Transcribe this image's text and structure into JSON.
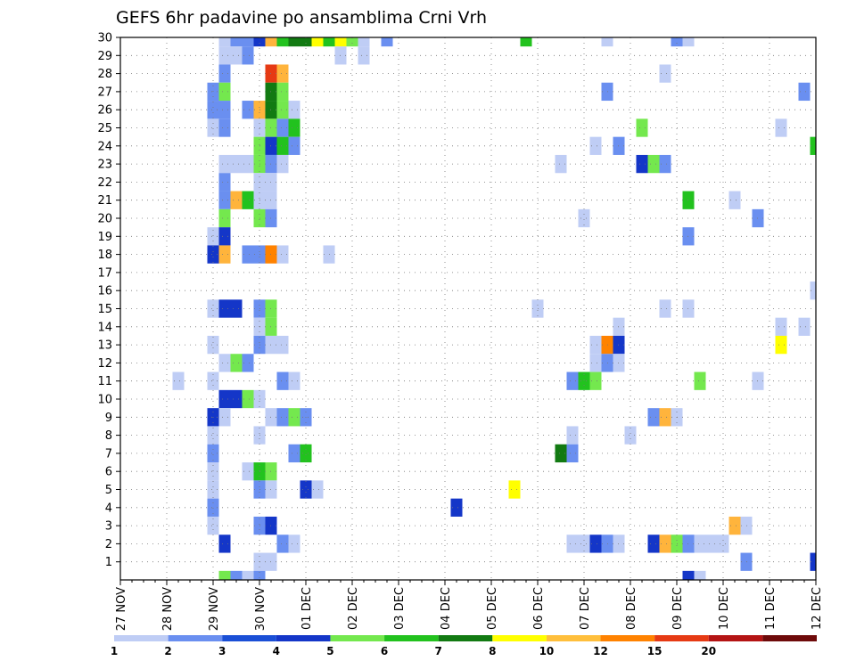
{
  "chart_data": {
    "type": "heatmap",
    "title": "GEFS 6hr padavine po ansamblima Crni Vrh",
    "xlabel": "",
    "ylabel": "",
    "x_start": "27 NOV",
    "steps_per_day": 4,
    "num_steps": 61,
    "x_tick_labels": [
      "27 NOV",
      "28 NOV",
      "29 NOV",
      "30 NOV",
      "01 DEC",
      "02 DEC",
      "03 DEC",
      "04 DEC",
      "05 DEC",
      "06 DEC",
      "07 DEC",
      "08 DEC",
      "09 DEC",
      "10 DEC",
      "11 DEC",
      "12 DEC"
    ],
    "ylim": [
      0,
      30
    ],
    "y_tick_labels": [
      1,
      2,
      3,
      4,
      5,
      6,
      7,
      8,
      9,
      10,
      11,
      12,
      13,
      14,
      15,
      16,
      17,
      18,
      19,
      20,
      21,
      22,
      23,
      24,
      25,
      26,
      27,
      28,
      29,
      30
    ],
    "grid": true,
    "legend": {
      "placement": "bottom",
      "colors": [
        "#bfcdf5",
        "#6a8ff0",
        "#1a4fd6",
        "#1436c8",
        "#74e84e",
        "#22c21e",
        "#127a12",
        "#ffff00",
        "#ffbf3c",
        "#ff8200",
        "#e63a14",
        "#b41414",
        "#6e0a0a"
      ],
      "labels": [
        "1",
        "2",
        "3",
        "4",
        "5",
        "6",
        "7",
        "8",
        "10",
        "12",
        "15",
        "20"
      ]
    },
    "levels": {
      "l": "#bfcdf5",
      "m": "#6a8ff0",
      "b": "#1a4fd6",
      "d": "#1436c8",
      "g": "#74e84e",
      "G": "#22c21e",
      "D": "#127a12",
      "y": "#ffff00",
      "o": "#ffb43c",
      "O": "#ff8200",
      "r": "#e63a14",
      "R": "#b41414"
    },
    "cells": [
      {
        "m": 30,
        "s": 9,
        "c": "l"
      },
      {
        "m": 30,
        "s": 10,
        "c": "m"
      },
      {
        "m": 30,
        "s": 11,
        "c": "m"
      },
      {
        "m": 30,
        "s": 12,
        "c": "d"
      },
      {
        "m": 30,
        "s": 13,
        "c": "o"
      },
      {
        "m": 30,
        "s": 14,
        "c": "G"
      },
      {
        "m": 30,
        "s": 15,
        "c": "D"
      },
      {
        "m": 30,
        "s": 16,
        "c": "D"
      },
      {
        "m": 30,
        "s": 17,
        "c": "y"
      },
      {
        "m": 30,
        "s": 18,
        "c": "G"
      },
      {
        "m": 30,
        "s": 19,
        "c": "y"
      },
      {
        "m": 30,
        "s": 20,
        "c": "g"
      },
      {
        "m": 30,
        "s": 21,
        "c": "l"
      },
      {
        "m": 30,
        "s": 23,
        "c": "m"
      },
      {
        "m": 30,
        "s": 35,
        "c": "G"
      },
      {
        "m": 30,
        "s": 42,
        "c": "l"
      },
      {
        "m": 30,
        "s": 48,
        "c": "m"
      },
      {
        "m": 30,
        "s": 49,
        "c": "l"
      },
      {
        "m": 29,
        "s": 9,
        "c": "l"
      },
      {
        "m": 29,
        "s": 10,
        "c": "l"
      },
      {
        "m": 29,
        "s": 11,
        "c": "m"
      },
      {
        "m": 29,
        "s": 19,
        "c": "l"
      },
      {
        "m": 29,
        "s": 21,
        "c": "l"
      },
      {
        "m": 28,
        "s": 9,
        "c": "m"
      },
      {
        "m": 28,
        "s": 13,
        "c": "r"
      },
      {
        "m": 28,
        "s": 14,
        "c": "o"
      },
      {
        "m": 28,
        "s": 47,
        "c": "l"
      },
      {
        "m": 27,
        "s": 8,
        "c": "m"
      },
      {
        "m": 27,
        "s": 9,
        "c": "g"
      },
      {
        "m": 27,
        "s": 13,
        "c": "D"
      },
      {
        "m": 27,
        "s": 14,
        "c": "g"
      },
      {
        "m": 27,
        "s": 42,
        "c": "m"
      },
      {
        "m": 27,
        "s": 59,
        "c": "m"
      },
      {
        "m": 26,
        "s": 8,
        "c": "m"
      },
      {
        "m": 26,
        "s": 9,
        "c": "m"
      },
      {
        "m": 26,
        "s": 11,
        "c": "m"
      },
      {
        "m": 26,
        "s": 12,
        "c": "o"
      },
      {
        "m": 26,
        "s": 13,
        "c": "D"
      },
      {
        "m": 26,
        "s": 14,
        "c": "g"
      },
      {
        "m": 26,
        "s": 15,
        "c": "l"
      },
      {
        "m": 25,
        "s": 8,
        "c": "l"
      },
      {
        "m": 25,
        "s": 9,
        "c": "m"
      },
      {
        "m": 25,
        "s": 12,
        "c": "l"
      },
      {
        "m": 25,
        "s": 13,
        "c": "g"
      },
      {
        "m": 25,
        "s": 14,
        "c": "m"
      },
      {
        "m": 25,
        "s": 15,
        "c": "G"
      },
      {
        "m": 25,
        "s": 45,
        "c": "g"
      },
      {
        "m": 25,
        "s": 57,
        "c": "l"
      },
      {
        "m": 24,
        "s": 12,
        "c": "g"
      },
      {
        "m": 24,
        "s": 13,
        "c": "d"
      },
      {
        "m": 24,
        "s": 14,
        "c": "G"
      },
      {
        "m": 24,
        "s": 15,
        "c": "m"
      },
      {
        "m": 24,
        "s": 41,
        "c": "l"
      },
      {
        "m": 24,
        "s": 43,
        "c": "m"
      },
      {
        "m": 24,
        "s": 60,
        "c": "G"
      },
      {
        "m": 23,
        "s": 9,
        "c": "l"
      },
      {
        "m": 23,
        "s": 10,
        "c": "l"
      },
      {
        "m": 23,
        "s": 11,
        "c": "l"
      },
      {
        "m": 23,
        "s": 12,
        "c": "g"
      },
      {
        "m": 23,
        "s": 13,
        "c": "m"
      },
      {
        "m": 23,
        "s": 14,
        "c": "l"
      },
      {
        "m": 23,
        "s": 38,
        "c": "l"
      },
      {
        "m": 23,
        "s": 45,
        "c": "d"
      },
      {
        "m": 23,
        "s": 46,
        "c": "g"
      },
      {
        "m": 23,
        "s": 47,
        "c": "m"
      },
      {
        "m": 22,
        "s": 9,
        "c": "m"
      },
      {
        "m": 22,
        "s": 12,
        "c": "l"
      },
      {
        "m": 22,
        "s": 13,
        "c": "l"
      },
      {
        "m": 21,
        "s": 9,
        "c": "m"
      },
      {
        "m": 21,
        "s": 10,
        "c": "o"
      },
      {
        "m": 21,
        "s": 11,
        "c": "G"
      },
      {
        "m": 21,
        "s": 12,
        "c": "l"
      },
      {
        "m": 21,
        "s": 13,
        "c": "l"
      },
      {
        "m": 21,
        "s": 49,
        "c": "G"
      },
      {
        "m": 21,
        "s": 53,
        "c": "l"
      },
      {
        "m": 20,
        "s": 9,
        "c": "g"
      },
      {
        "m": 20,
        "s": 12,
        "c": "g"
      },
      {
        "m": 20,
        "s": 13,
        "c": "m"
      },
      {
        "m": 20,
        "s": 40,
        "c": "l"
      },
      {
        "m": 20,
        "s": 55,
        "c": "m"
      },
      {
        "m": 19,
        "s": 8,
        "c": "l"
      },
      {
        "m": 19,
        "s": 9,
        "c": "d"
      },
      {
        "m": 19,
        "s": 49,
        "c": "m"
      },
      {
        "m": 18,
        "s": 8,
        "c": "d"
      },
      {
        "m": 18,
        "s": 9,
        "c": "o"
      },
      {
        "m": 18,
        "s": 11,
        "c": "m"
      },
      {
        "m": 18,
        "s": 12,
        "c": "m"
      },
      {
        "m": 18,
        "s": 13,
        "c": "O"
      },
      {
        "m": 18,
        "s": 14,
        "c": "l"
      },
      {
        "m": 18,
        "s": 18,
        "c": "l"
      },
      {
        "m": 16,
        "s": 60,
        "c": "l"
      },
      {
        "m": 15,
        "s": 8,
        "c": "l"
      },
      {
        "m": 15,
        "s": 9,
        "c": "d"
      },
      {
        "m": 15,
        "s": 10,
        "c": "d"
      },
      {
        "m": 15,
        "s": 12,
        "c": "m"
      },
      {
        "m": 15,
        "s": 13,
        "c": "g"
      },
      {
        "m": 15,
        "s": 36,
        "c": "l"
      },
      {
        "m": 15,
        "s": 47,
        "c": "l"
      },
      {
        "m": 15,
        "s": 49,
        "c": "l"
      },
      {
        "m": 14,
        "s": 12,
        "c": "l"
      },
      {
        "m": 14,
        "s": 13,
        "c": "g"
      },
      {
        "m": 14,
        "s": 43,
        "c": "l"
      },
      {
        "m": 14,
        "s": 57,
        "c": "l"
      },
      {
        "m": 14,
        "s": 59,
        "c": "l"
      },
      {
        "m": 13,
        "s": 8,
        "c": "l"
      },
      {
        "m": 13,
        "s": 12,
        "c": "m"
      },
      {
        "m": 13,
        "s": 13,
        "c": "l"
      },
      {
        "m": 13,
        "s": 14,
        "c": "l"
      },
      {
        "m": 13,
        "s": 41,
        "c": "l"
      },
      {
        "m": 13,
        "s": 42,
        "c": "O"
      },
      {
        "m": 13,
        "s": 43,
        "c": "d"
      },
      {
        "m": 13,
        "s": 57,
        "c": "y"
      },
      {
        "m": 12,
        "s": 9,
        "c": "l"
      },
      {
        "m": 12,
        "s": 10,
        "c": "g"
      },
      {
        "m": 12,
        "s": 11,
        "c": "m"
      },
      {
        "m": 12,
        "s": 41,
        "c": "l"
      },
      {
        "m": 12,
        "s": 42,
        "c": "m"
      },
      {
        "m": 12,
        "s": 43,
        "c": "l"
      },
      {
        "m": 11,
        "s": 5,
        "c": "l"
      },
      {
        "m": 11,
        "s": 8,
        "c": "l"
      },
      {
        "m": 11,
        "s": 14,
        "c": "m"
      },
      {
        "m": 11,
        "s": 15,
        "c": "l"
      },
      {
        "m": 11,
        "s": 39,
        "c": "m"
      },
      {
        "m": 11,
        "s": 40,
        "c": "G"
      },
      {
        "m": 11,
        "s": 41,
        "c": "g"
      },
      {
        "m": 11,
        "s": 50,
        "c": "g"
      },
      {
        "m": 11,
        "s": 55,
        "c": "l"
      },
      {
        "m": 10,
        "s": 9,
        "c": "d"
      },
      {
        "m": 10,
        "s": 10,
        "c": "d"
      },
      {
        "m": 10,
        "s": 11,
        "c": "g"
      },
      {
        "m": 10,
        "s": 12,
        "c": "l"
      },
      {
        "m": 9,
        "s": 8,
        "c": "d"
      },
      {
        "m": 9,
        "s": 9,
        "c": "l"
      },
      {
        "m": 9,
        "s": 13,
        "c": "l"
      },
      {
        "m": 9,
        "s": 14,
        "c": "m"
      },
      {
        "m": 9,
        "s": 15,
        "c": "g"
      },
      {
        "m": 9,
        "s": 16,
        "c": "m"
      },
      {
        "m": 9,
        "s": 46,
        "c": "m"
      },
      {
        "m": 9,
        "s": 47,
        "c": "o"
      },
      {
        "m": 9,
        "s": 48,
        "c": "l"
      },
      {
        "m": 8,
        "s": 8,
        "c": "l"
      },
      {
        "m": 8,
        "s": 12,
        "c": "l"
      },
      {
        "m": 8,
        "s": 39,
        "c": "l"
      },
      {
        "m": 8,
        "s": 44,
        "c": "l"
      },
      {
        "m": 7,
        "s": 8,
        "c": "m"
      },
      {
        "m": 7,
        "s": 15,
        "c": "m"
      },
      {
        "m": 7,
        "s": 16,
        "c": "G"
      },
      {
        "m": 7,
        "s": 38,
        "c": "D"
      },
      {
        "m": 7,
        "s": 39,
        "c": "m"
      },
      {
        "m": 6,
        "s": 8,
        "c": "l"
      },
      {
        "m": 6,
        "s": 11,
        "c": "l"
      },
      {
        "m": 6,
        "s": 12,
        "c": "G"
      },
      {
        "m": 6,
        "s": 13,
        "c": "g"
      },
      {
        "m": 5,
        "s": 8,
        "c": "l"
      },
      {
        "m": 5,
        "s": 12,
        "c": "m"
      },
      {
        "m": 5,
        "s": 13,
        "c": "l"
      },
      {
        "m": 5,
        "s": 16,
        "c": "d"
      },
      {
        "m": 5,
        "s": 17,
        "c": "l"
      },
      {
        "m": 5,
        "s": 34,
        "c": "y"
      },
      {
        "m": 4,
        "s": 8,
        "c": "m"
      },
      {
        "m": 4,
        "s": 29,
        "c": "d"
      },
      {
        "m": 3,
        "s": 8,
        "c": "l"
      },
      {
        "m": 3,
        "s": 12,
        "c": "m"
      },
      {
        "m": 3,
        "s": 13,
        "c": "d"
      },
      {
        "m": 3,
        "s": 53,
        "c": "o"
      },
      {
        "m": 3,
        "s": 54,
        "c": "l"
      },
      {
        "m": 2,
        "s": 9,
        "c": "d"
      },
      {
        "m": 2,
        "s": 14,
        "c": "m"
      },
      {
        "m": 2,
        "s": 15,
        "c": "l"
      },
      {
        "m": 2,
        "s": 39,
        "c": "l"
      },
      {
        "m": 2,
        "s": 40,
        "c": "l"
      },
      {
        "m": 2,
        "s": 41,
        "c": "d"
      },
      {
        "m": 2,
        "s": 42,
        "c": "m"
      },
      {
        "m": 2,
        "s": 43,
        "c": "l"
      },
      {
        "m": 2,
        "s": 46,
        "c": "d"
      },
      {
        "m": 2,
        "s": 47,
        "c": "o"
      },
      {
        "m": 2,
        "s": 48,
        "c": "g"
      },
      {
        "m": 2,
        "s": 49,
        "c": "m"
      },
      {
        "m": 2,
        "s": 50,
        "c": "l"
      },
      {
        "m": 2,
        "s": 51,
        "c": "l"
      },
      {
        "m": 2,
        "s": 52,
        "c": "l"
      },
      {
        "m": 1,
        "s": 12,
        "c": "l"
      },
      {
        "m": 1,
        "s": 13,
        "c": "l"
      },
      {
        "m": 1,
        "s": 54,
        "c": "m"
      },
      {
        "m": 1,
        "s": 60,
        "c": "d"
      },
      {
        "m": 0,
        "s": 9,
        "c": "g"
      },
      {
        "m": 0,
        "s": 10,
        "c": "m"
      },
      {
        "m": 0,
        "s": 11,
        "c": "l"
      },
      {
        "m": 0,
        "s": 12,
        "c": "m"
      },
      {
        "m": 0,
        "s": 49,
        "c": "d"
      },
      {
        "m": 0,
        "s": 50,
        "c": "l"
      }
    ]
  }
}
